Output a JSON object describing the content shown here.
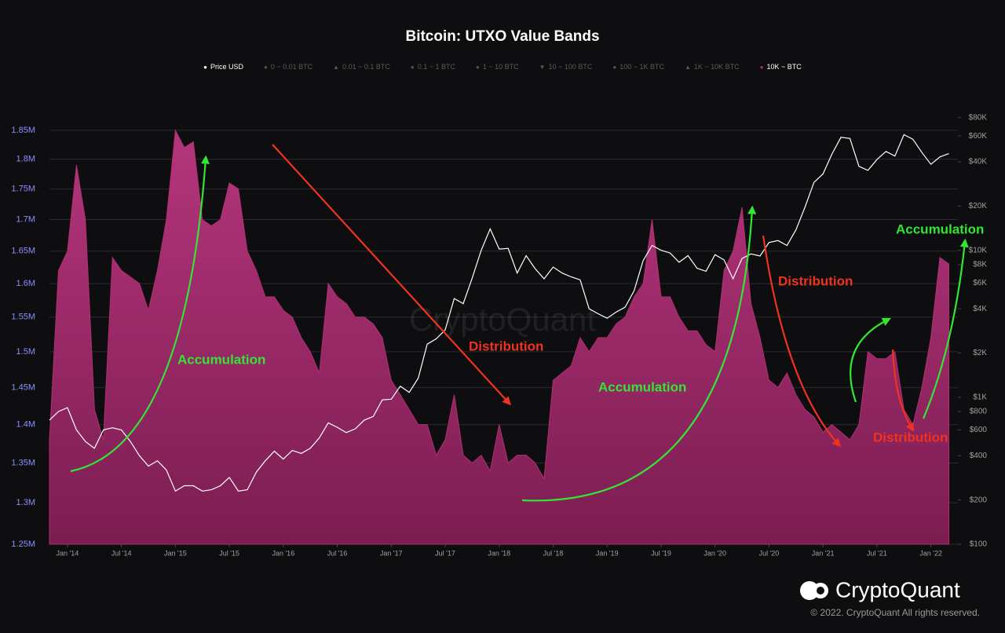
{
  "chart_data": {
    "type": "area-line",
    "title": "Bitcoin: UTXO Value Bands",
    "series": [
      {
        "name": "Price USD",
        "color": "#ffffff",
        "marker": "circle",
        "hidden": false,
        "axis": "y2",
        "kind": "line",
        "values": [
          700,
          800,
          850,
          600,
          500,
          450,
          600,
          620,
          600,
          500,
          400,
          340,
          370,
          320,
          230,
          250,
          250,
          230,
          235,
          250,
          285,
          230,
          235,
          310,
          370,
          430,
          380,
          435,
          415,
          450,
          530,
          670,
          625,
          575,
          610,
          700,
          740,
          960,
          970,
          1190,
          1080,
          1350,
          2300,
          2500,
          2875,
          4700,
          4340,
          6470,
          10000,
          14000,
          10200,
          10300,
          7000,
          9200,
          7500,
          6400,
          7700,
          7000,
          6600,
          6300,
          4000,
          3700,
          3450,
          3800,
          4100,
          5300,
          8500,
          10800,
          10000,
          9600,
          8300,
          9200,
          7550,
          7200,
          9350,
          8600,
          6400,
          8800,
          9450,
          9140,
          11300,
          11650,
          10780,
          13800,
          19700,
          29000,
          33100,
          45200,
          58800,
          57700,
          37300,
          35000,
          41500,
          47100,
          43800,
          61300,
          57000,
          46300,
          38500,
          43200,
          45500
        ]
      },
      {
        "name": "0 ~ 0.01 BTC",
        "color": "#6b6b6b",
        "marker": "circle",
        "hidden": true
      },
      {
        "name": "0.01 ~ 0.1 BTC",
        "color": "#6b6b6b",
        "marker": "triangle",
        "hidden": true
      },
      {
        "name": "0.1 ~ 1 BTC",
        "color": "#6b6b6b",
        "marker": "circle",
        "hidden": true
      },
      {
        "name": "1 ~ 10 BTC",
        "color": "#6b6b6b",
        "marker": "circle",
        "hidden": true
      },
      {
        "name": "10 ~ 100 BTC",
        "color": "#6b6b6b",
        "marker": "triangle-down",
        "hidden": true
      },
      {
        "name": "100 ~ 1K BTC",
        "color": "#6b6b6b",
        "marker": "circle",
        "hidden": true
      },
      {
        "name": "1K ~ 10K BTC",
        "color": "#6b6b6b",
        "marker": "triangle",
        "hidden": true
      },
      {
        "name": "10K ~ BTC",
        "color": "#b0306f",
        "marker": "circle",
        "hidden": false,
        "axis": "y",
        "kind": "area",
        "values": [
          1380000,
          1620000,
          1650000,
          1790000,
          1700000,
          1420000,
          1380000,
          1640000,
          1620000,
          1610000,
          1600000,
          1560000,
          1620000,
          1700000,
          1850000,
          1820000,
          1830000,
          1700000,
          1690000,
          1700000,
          1760000,
          1750000,
          1650000,
          1620000,
          1580000,
          1580000,
          1560000,
          1550000,
          1520000,
          1500000,
          1470000,
          1600000,
          1580000,
          1570000,
          1550000,
          1550000,
          1540000,
          1520000,
          1460000,
          1440000,
          1420000,
          1400000,
          1400000,
          1360000,
          1380000,
          1440000,
          1360000,
          1350000,
          1360000,
          1340000,
          1400000,
          1350000,
          1360000,
          1360000,
          1350000,
          1330000,
          1460000,
          1470000,
          1480000,
          1520000,
          1500000,
          1520000,
          1520000,
          1540000,
          1550000,
          1580000,
          1600000,
          1700000,
          1580000,
          1580000,
          1550000,
          1530000,
          1530000,
          1510000,
          1500000,
          1620000,
          1650000,
          1720000,
          1570000,
          1520000,
          1460000,
          1450000,
          1470000,
          1440000,
          1420000,
          1410000,
          1390000,
          1400000,
          1390000,
          1380000,
          1400000,
          1500000,
          1490000,
          1490000,
          1500000,
          1420000,
          1400000,
          1450000,
          1520000,
          1640000,
          1630000
        ]
      }
    ],
    "x": [
      "2013-11",
      "2013-12",
      "2014-01",
      "2014-02",
      "2014-03",
      "2014-04",
      "2014-05",
      "2014-06",
      "2014-07",
      "2014-08",
      "2014-09",
      "2014-10",
      "2014-11",
      "2014-12",
      "2015-01",
      "2015-02",
      "2015-03",
      "2015-04",
      "2015-05",
      "2015-06",
      "2015-07",
      "2015-08",
      "2015-09",
      "2015-10",
      "2015-11",
      "2015-12",
      "2016-01",
      "2016-02",
      "2016-03",
      "2016-04",
      "2016-05",
      "2016-06",
      "2016-07",
      "2016-08",
      "2016-09",
      "2016-10",
      "2016-11",
      "2016-12",
      "2017-01",
      "2017-02",
      "2017-03",
      "2017-04",
      "2017-05",
      "2017-06",
      "2017-07",
      "2017-08",
      "2017-09",
      "2017-10",
      "2017-11",
      "2017-12",
      "2018-01",
      "2018-02",
      "2018-03",
      "2018-04",
      "2018-05",
      "2018-06",
      "2018-07",
      "2018-08",
      "2018-09",
      "2018-10",
      "2018-11",
      "2018-12",
      "2019-01",
      "2019-02",
      "2019-03",
      "2019-04",
      "2019-05",
      "2019-06",
      "2019-07",
      "2019-08",
      "2019-09",
      "2019-10",
      "2019-11",
      "2019-12",
      "2020-01",
      "2020-02",
      "2020-03",
      "2020-04",
      "2020-05",
      "2020-06",
      "2020-07",
      "2020-08",
      "2020-09",
      "2020-10",
      "2020-11",
      "2020-12",
      "2021-01",
      "2021-02",
      "2021-03",
      "2021-04",
      "2021-05",
      "2021-06",
      "2021-07",
      "2021-08",
      "2021-09",
      "2021-10",
      "2021-11",
      "2021-12",
      "2022-01",
      "2022-02",
      "2022-03"
    ],
    "xlim": [
      "2013-11",
      "2022-04"
    ],
    "xticks": [
      {
        "value": "2014-01",
        "label": "Jan '14"
      },
      {
        "value": "2014-07",
        "label": "Jul '14"
      },
      {
        "value": "2015-01",
        "label": "Jan '15"
      },
      {
        "value": "2015-07",
        "label": "Jul '15"
      },
      {
        "value": "2016-01",
        "label": "Jan '16"
      },
      {
        "value": "2016-07",
        "label": "Jul '16"
      },
      {
        "value": "2017-01",
        "label": "Jan '17"
      },
      {
        "value": "2017-07",
        "label": "Jul '17"
      },
      {
        "value": "2018-01",
        "label": "Jan '18"
      },
      {
        "value": "2018-07",
        "label": "Jul '18"
      },
      {
        "value": "2019-01",
        "label": "Jan '19"
      },
      {
        "value": "2019-07",
        "label": "Jul '19"
      },
      {
        "value": "2020-01",
        "label": "Jan '20"
      },
      {
        "value": "2020-07",
        "label": "Jul '20"
      },
      {
        "value": "2021-01",
        "label": "Jan '21"
      },
      {
        "value": "2021-07",
        "label": "Jul '21"
      },
      {
        "value": "2022-01",
        "label": "Jan '22"
      }
    ],
    "ylim": [
      1250000,
      1900000
    ],
    "ylog": true,
    "yticks": [
      {
        "value": 1250000,
        "label": "1.25M"
      },
      {
        "value": 1300000,
        "label": "1.3M"
      },
      {
        "value": 1350000,
        "label": "1.35M"
      },
      {
        "value": 1400000,
        "label": "1.4M"
      },
      {
        "value": 1450000,
        "label": "1.45M"
      },
      {
        "value": 1500000,
        "label": "1.5M"
      },
      {
        "value": 1550000,
        "label": "1.55M"
      },
      {
        "value": 1600000,
        "label": "1.6M"
      },
      {
        "value": 1650000,
        "label": "1.65M"
      },
      {
        "value": 1700000,
        "label": "1.7M"
      },
      {
        "value": 1750000,
        "label": "1.75M"
      },
      {
        "value": 1800000,
        "label": "1.8M"
      },
      {
        "value": 1850000,
        "label": "1.85M"
      }
    ],
    "y2lim": [
      100,
      102000
    ],
    "y2log": true,
    "y2ticks": [
      {
        "value": 100,
        "label": "$100"
      },
      {
        "value": 200,
        "label": "$200"
      },
      {
        "value": 400,
        "label": "$400"
      },
      {
        "value": 600,
        "label": "$600"
      },
      {
        "value": 800,
        "label": "$800"
      },
      {
        "value": 1000,
        "label": "$1K"
      },
      {
        "value": 2000,
        "label": "$2K"
      },
      {
        "value": 4000,
        "label": "$4K"
      },
      {
        "value": 6000,
        "label": "$6K"
      },
      {
        "value": 8000,
        "label": "$8K"
      },
      {
        "value": 10000,
        "label": "$10K"
      },
      {
        "value": 20000,
        "label": "$20K"
      },
      {
        "value": 40000,
        "label": "$40K"
      },
      {
        "value": 60000,
        "label": "$60K"
      },
      {
        "value": 80000,
        "label": "$80K"
      }
    ],
    "grid": true,
    "annotations": [
      {
        "text": "Accumulation",
        "color": "#33e633"
      },
      {
        "text": "Distribution",
        "color": "#f0321e"
      },
      {
        "text": "Accumulation",
        "color": "#33e633"
      },
      {
        "text": "Distribution",
        "color": "#f0321e"
      },
      {
        "text": "Accumulation",
        "color": "#33e633"
      },
      {
        "text": "Distribution",
        "color": "#f0321e"
      }
    ],
    "watermark": "CryptoQuant",
    "brand": "CryptoQuant",
    "copyright": "© 2022. CryptoQuant All rights reserved."
  }
}
